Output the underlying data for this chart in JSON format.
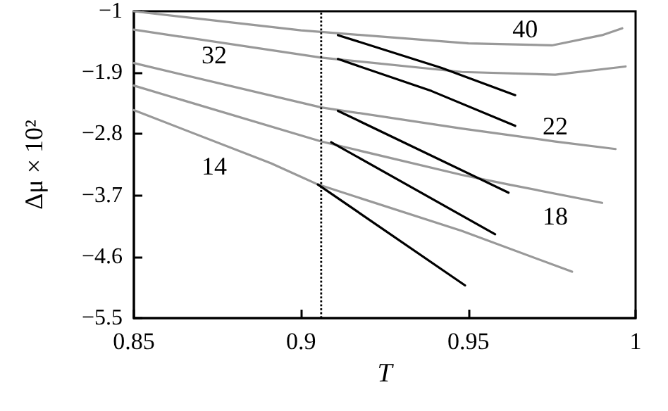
{
  "chart_data": {
    "type": "line",
    "xlabel": "T",
    "ylabel": "Δμ × 10²",
    "xlim": [
      0.85,
      1
    ],
    "xticks": [
      0.85,
      0.9,
      0.95,
      1
    ],
    "ylim": [
      -5.5,
      -1
    ],
    "yticks": [
      {
        "value": -1,
        "label": "−1"
      },
      {
        "value": -1.9,
        "label": "−1.9"
      },
      {
        "value": -2.8,
        "label": "−2.8"
      },
      {
        "value": -3.7,
        "label": "−3.7"
      },
      {
        "value": -4.6,
        "label": "−4.6"
      },
      {
        "value": -5.5,
        "label": "−5.5"
      }
    ],
    "grid": false,
    "marker": "none",
    "line_style": "solid",
    "series": [
      {
        "name": "40",
        "color": "#999999",
        "x": [
          0.85,
          0.9,
          0.95,
          0.975,
          0.99,
          0.996
        ],
        "values": [
          -1,
          -1.28,
          -1.47,
          -1.5,
          -1.35,
          -1.25
        ]
      },
      {
        "name": "32",
        "color": "#999999",
        "x": [
          0.85,
          0.906,
          0.948,
          0.976,
          0.997
        ],
        "values": [
          -1.27,
          -1.68,
          -1.89,
          -1.93,
          -1.81
        ]
      },
      {
        "name": "22",
        "color": "#999999",
        "x": [
          0.85,
          0.906,
          0.948,
          0.976,
          0.994
        ],
        "values": [
          -1.76,
          -2.41,
          -2.72,
          -2.91,
          -3.02
        ]
      },
      {
        "name": "18",
        "color": "#999999",
        "x": [
          0.85,
          0.906,
          0.948,
          0.962,
          0.99
        ],
        "values": [
          -2.09,
          -2.91,
          -3.4,
          -3.54,
          -3.81
        ]
      },
      {
        "name": "14",
        "color": "#999999",
        "x": [
          0.85,
          0.891,
          0.905,
          0.948,
          0.981
        ],
        "values": [
          -2.45,
          -3.23,
          -3.54,
          -4.22,
          -4.82
        ]
      },
      {
        "color": "#000000",
        "x": [
          0.911,
          0.942,
          0.964
        ],
        "values": [
          -1.35,
          -1.83,
          -2.23
        ]
      },
      {
        "color": "#000000",
        "x": [
          0.911,
          0.939,
          0.964
        ],
        "values": [
          -1.7,
          -2.17,
          -2.68
        ]
      },
      {
        "color": "#000000",
        "x": [
          0.911,
          0.962
        ],
        "values": [
          -2.46,
          -3.66
        ]
      },
      {
        "color": "#000000",
        "x": [
          0.909,
          0.958
        ],
        "values": [
          -2.92,
          -4.27
        ]
      },
      {
        "color": "#000000",
        "x": [
          0.905,
          0.949
        ],
        "values": [
          -3.54,
          -5.02
        ]
      }
    ],
    "ref_lines": [
      {
        "axis": "x",
        "value": 0.906,
        "color": "#000000",
        "line_style": "dotted"
      }
    ]
  }
}
